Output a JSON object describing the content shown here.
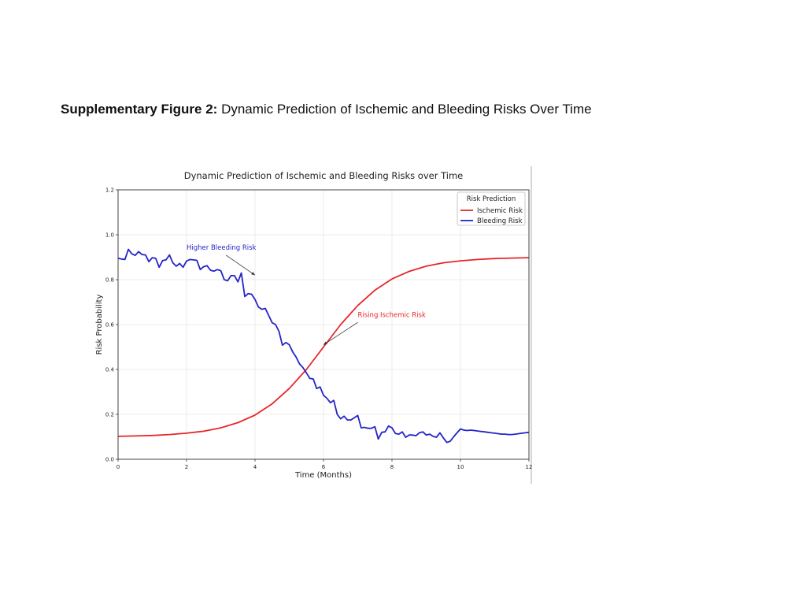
{
  "caption": {
    "label": "Supplementary Figure 2:",
    "text": "Dynamic Prediction of Ischemic and Bleeding Risks Over Time"
  },
  "chart_data": {
    "type": "line",
    "title": "Dynamic Prediction of Ischemic and Bleeding Risks over Time",
    "xlabel": "Time (Months)",
    "ylabel": "Risk Probability",
    "xlim": [
      0,
      12
    ],
    "ylim": [
      0,
      1.2
    ],
    "xticks": [
      0,
      2,
      4,
      6,
      8,
      10,
      12
    ],
    "yticks": [
      0.0,
      0.2,
      0.4,
      0.6,
      0.8,
      1.0,
      1.2
    ],
    "xtick_labels": [
      "0",
      "2",
      "4",
      "6",
      "8",
      "10",
      "12"
    ],
    "ytick_labels": [
      "0.0",
      "0.2",
      "0.4",
      "0.6",
      "0.8",
      "1.0",
      "1.2"
    ],
    "grid": true,
    "legend": {
      "title": "Risk Prediction",
      "placement": "top-right"
    },
    "series": [
      {
        "name": "Ischemic Risk",
        "color": "#e8262a",
        "x": [
          0,
          0.5,
          1,
          1.5,
          2,
          2.5,
          3,
          3.5,
          4,
          4.5,
          5,
          5.5,
          6,
          6.5,
          7,
          7.5,
          8,
          8.5,
          9,
          9.5,
          10,
          10.5,
          11,
          11.5,
          12
        ],
        "y": [
          0.102,
          0.104,
          0.106,
          0.11,
          0.116,
          0.125,
          0.14,
          0.163,
          0.197,
          0.247,
          0.315,
          0.4,
          0.5,
          0.6,
          0.685,
          0.753,
          0.803,
          0.837,
          0.86,
          0.875,
          0.884,
          0.89,
          0.894,
          0.896,
          0.898
        ]
      },
      {
        "name": "Bleeding Risk",
        "color": "#2424c8",
        "x": [
          0,
          0.1,
          0.2,
          0.3,
          0.4,
          0.5,
          0.6,
          0.7,
          0.8,
          0.9,
          1.0,
          1.1,
          1.2,
          1.3,
          1.4,
          1.5,
          1.6,
          1.7,
          1.8,
          1.9,
          2.0,
          2.1,
          2.2,
          2.3,
          2.4,
          2.5,
          2.6,
          2.7,
          2.8,
          2.9,
          3.0,
          3.1,
          3.2,
          3.3,
          3.4,
          3.5,
          3.6,
          3.7,
          3.8,
          3.9,
          4.0,
          4.1,
          4.2,
          4.3,
          4.4,
          4.5,
          4.6,
          4.7,
          4.8,
          4.9,
          5.0,
          5.1,
          5.2,
          5.3,
          5.4,
          5.5,
          5.6,
          5.7,
          5.8,
          5.9,
          6.0,
          6.1,
          6.2,
          6.3,
          6.4,
          6.5,
          6.6,
          6.7,
          6.8,
          6.9,
          7.0,
          7.1,
          7.2,
          7.3,
          7.4,
          7.5,
          7.6,
          7.7,
          7.8,
          7.9,
          8.0,
          8.1,
          8.2,
          8.3,
          8.4,
          8.5,
          8.6,
          8.7,
          8.8,
          8.9,
          9.0,
          9.1,
          9.2,
          9.3,
          9.4,
          9.5,
          9.6,
          9.7,
          9.8,
          9.9,
          10.0,
          10.1,
          10.2,
          10.3,
          10.4,
          10.5,
          10.6,
          10.7,
          10.8,
          10.9,
          11.0,
          11.1,
          11.2,
          11.3,
          11.4,
          11.5,
          11.6,
          11.7,
          11.8,
          11.9,
          12.0
        ],
        "y": [
          0.895,
          0.892,
          0.89,
          0.935,
          0.915,
          0.908,
          0.925,
          0.912,
          0.91,
          0.88,
          0.898,
          0.895,
          0.855,
          0.885,
          0.888,
          0.91,
          0.875,
          0.86,
          0.872,
          0.855,
          0.883,
          0.89,
          0.888,
          0.886,
          0.845,
          0.858,
          0.862,
          0.842,
          0.838,
          0.845,
          0.84,
          0.8,
          0.795,
          0.818,
          0.818,
          0.79,
          0.83,
          0.725,
          0.738,
          0.735,
          0.712,
          0.678,
          0.668,
          0.672,
          0.64,
          0.608,
          0.6,
          0.57,
          0.508,
          0.52,
          0.51,
          0.478,
          0.455,
          0.425,
          0.408,
          0.385,
          0.36,
          0.358,
          0.315,
          0.322,
          0.285,
          0.272,
          0.252,
          0.262,
          0.2,
          0.18,
          0.192,
          0.175,
          0.175,
          0.185,
          0.195,
          0.14,
          0.142,
          0.138,
          0.138,
          0.145,
          0.09,
          0.12,
          0.122,
          0.148,
          0.14,
          0.115,
          0.112,
          0.122,
          0.098,
          0.108,
          0.108,
          0.105,
          0.118,
          0.122,
          0.108,
          0.112,
          0.102,
          0.098,
          0.118,
          0.095,
          0.075,
          0.08,
          0.1,
          0.118,
          0.135,
          0.13,
          0.128,
          0.13,
          0.128,
          0.126,
          0.124,
          0.122,
          0.12,
          0.118,
          0.116,
          0.114,
          0.112,
          0.112,
          0.11,
          0.11,
          0.112,
          0.114,
          0.116,
          0.118,
          0.12
        ]
      }
    ],
    "annotations": [
      {
        "text": "Higher Bleeding Risk",
        "color": "#2424c8",
        "target": [
          4.0,
          0.82
        ],
        "text_at": [
          2.0,
          0.92
        ]
      },
      {
        "text": "Rising Ischemic Risk",
        "color": "#e8262a",
        "target": [
          6.0,
          0.51
        ],
        "text_at": [
          7.0,
          0.62
        ]
      }
    ]
  }
}
